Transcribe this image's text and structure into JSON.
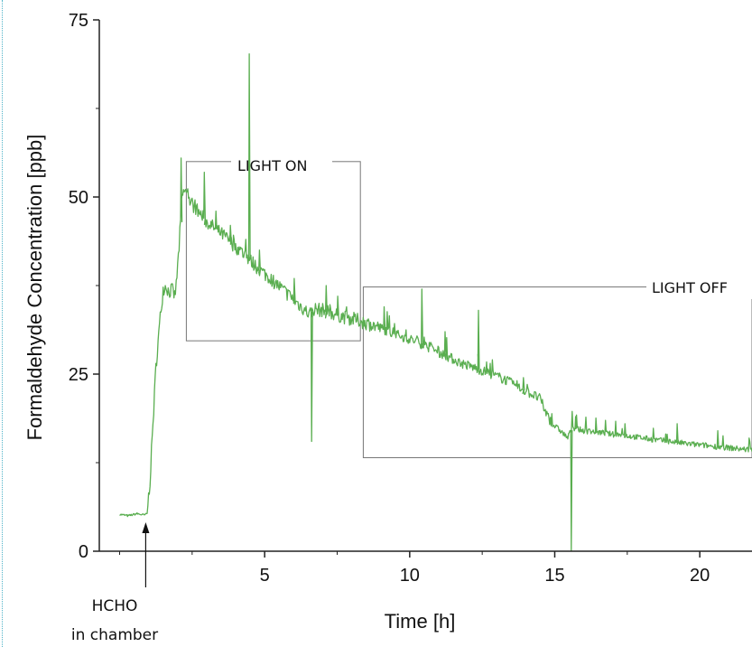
{
  "chart_data": {
    "type": "line",
    "xlabel": "Time [h]",
    "ylabel": "Formaldehyde Concentration [ppb]",
    "xlim": [
      -0.7,
      21.8
    ],
    "ylim": [
      0,
      75
    ],
    "x_ticks": [
      5,
      10,
      15,
      20
    ],
    "y_ticks": [
      0,
      25,
      50,
      75
    ],
    "grid": false,
    "line_color": "#5aae50",
    "series": [
      {
        "points": [
          [
            0.0,
            5.2
          ],
          [
            0.3,
            5.0
          ],
          [
            0.6,
            5.3
          ],
          [
            0.85,
            5.1
          ],
          [
            0.95,
            5.3
          ],
          [
            1.05,
            10
          ],
          [
            1.15,
            18
          ],
          [
            1.25,
            26
          ],
          [
            1.4,
            33
          ],
          [
            1.5,
            37
          ],
          [
            1.6,
            37.5
          ],
          [
            1.7,
            36.5
          ],
          [
            1.8,
            37
          ],
          [
            1.9,
            36
          ],
          [
            1.95,
            37.5
          ],
          [
            2.05,
            43
          ],
          [
            2.15,
            50
          ],
          [
            2.25,
            51
          ],
          [
            2.4,
            49.5
          ],
          [
            2.6,
            48.5
          ],
          [
            2.8,
            47.5
          ],
          [
            3.0,
            46.5
          ],
          [
            3.3,
            45.5
          ],
          [
            3.6,
            44.5
          ],
          [
            4.0,
            43
          ],
          [
            4.4,
            41.5
          ],
          [
            4.8,
            39.8
          ],
          [
            5.2,
            38.5
          ],
          [
            5.6,
            37
          ],
          [
            6.0,
            35.5
          ],
          [
            6.4,
            34.0
          ],
          [
            6.55,
            33.5
          ],
          [
            6.7,
            34.2
          ],
          [
            7.0,
            34.0
          ],
          [
            7.4,
            33.5
          ],
          [
            7.8,
            33.0
          ],
          [
            8.3,
            32.5
          ],
          [
            8.8,
            31.8
          ],
          [
            9.3,
            31.0
          ],
          [
            9.8,
            30.2
          ],
          [
            10.3,
            29.5
          ],
          [
            10.8,
            28.5
          ],
          [
            11.3,
            27.5
          ],
          [
            11.8,
            26.5
          ],
          [
            12.3,
            25.8
          ],
          [
            12.8,
            25.0
          ],
          [
            13.3,
            24.2
          ],
          [
            13.8,
            23.0
          ],
          [
            14.2,
            22.2
          ],
          [
            14.5,
            21.5
          ],
          [
            14.7,
            19.5
          ],
          [
            14.9,
            18.0
          ],
          [
            15.2,
            17.0
          ],
          [
            15.45,
            16.0
          ],
          [
            15.6,
            17.5
          ],
          [
            16.0,
            17.0
          ],
          [
            16.5,
            16.8
          ],
          [
            17.0,
            16.5
          ],
          [
            17.5,
            16.3
          ],
          [
            18.0,
            16.0
          ],
          [
            18.5,
            15.7
          ],
          [
            19.0,
            15.5
          ],
          [
            19.5,
            15.2
          ],
          [
            20.0,
            15.0
          ],
          [
            20.5,
            14.8
          ],
          [
            21.0,
            14.6
          ],
          [
            21.5,
            14.4
          ],
          [
            21.8,
            14.3
          ]
        ],
        "spikes": [
          [
            2.1,
            55.5
          ],
          [
            2.9,
            53.5
          ],
          [
            3.3,
            48
          ],
          [
            3.8,
            46
          ],
          [
            4.45,
            70.2
          ],
          [
            4.8,
            42.5
          ],
          [
            6.0,
            38.5
          ],
          [
            6.6,
            15.5
          ],
          [
            7.1,
            37.5
          ],
          [
            7.5,
            36
          ],
          [
            9.1,
            34.5
          ],
          [
            10.4,
            37.0
          ],
          [
            11.2,
            31
          ],
          [
            12.35,
            34.0
          ],
          [
            13.9,
            24.5
          ],
          [
            15.55,
            0.1
          ],
          [
            15.7,
            19.0
          ],
          [
            16.4,
            18.8
          ],
          [
            17.4,
            18.0
          ],
          [
            19.2,
            18.0
          ],
          [
            20.6,
            17.0
          ]
        ]
      }
    ],
    "annotations": [
      {
        "text": "LIGHT ON",
        "box_x": [
          2.3,
          8.3
        ],
        "box_y": [
          29.7,
          55
        ]
      },
      {
        "text": "LIGHT OFF",
        "box_x": [
          8.4,
          21.8
        ],
        "box_y": [
          13.2,
          37.3
        ]
      },
      {
        "text": "HCHO",
        "subtext": "in chamber",
        "arrow_x": 0.9
      }
    ]
  }
}
